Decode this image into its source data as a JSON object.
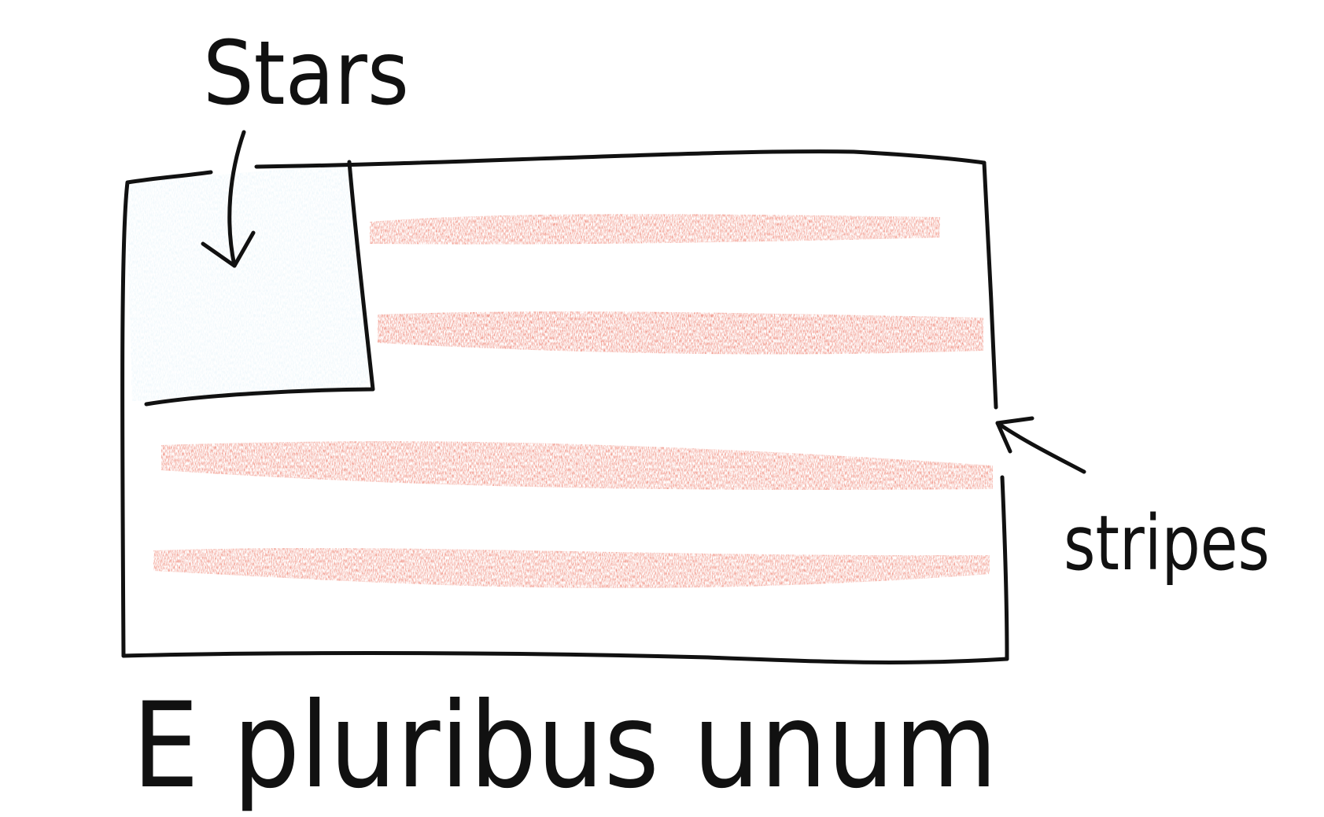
{
  "labels": {
    "stars": "Stars",
    "stripes": "stripes",
    "motto": "E pluribus unum"
  },
  "colors": {
    "ink": "#111111",
    "stripe": "#e8553f",
    "canton": "#d6ecf6",
    "paper": "#ffffff"
  },
  "icons": {
    "stars_arrow": "arrow-down-icon",
    "stripes_arrow": "arrow-up-left-icon"
  }
}
